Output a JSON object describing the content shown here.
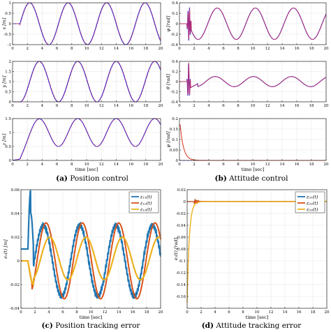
{
  "captions": {
    "a": {
      "label": "(a)",
      "text": "Position control"
    },
    "b": {
      "label": "(b)",
      "text": "Attitude control"
    },
    "c": {
      "label": "(c)",
      "text": "Position tracking error"
    },
    "d": {
      "label": "(d)",
      "text": "Attitude tracking error"
    }
  },
  "colors": {
    "reference": "#1f1fd8",
    "actual": "#c0306e",
    "blue": "#1f77b4",
    "orange": "#d95319",
    "yellow": "#edb120"
  },
  "chart_data": [
    {
      "type": "line",
      "panel": "x",
      "ylabel": "x",
      "yunit": "[m]",
      "xlim": [
        0,
        20
      ],
      "ylim": [
        -1,
        1
      ],
      "xticks": [
        0,
        2,
        4,
        6,
        8,
        10,
        12,
        14,
        16,
        18,
        20
      ],
      "yticks": [
        -1,
        -0.5,
        0,
        0.5,
        1
      ],
      "ytick_labels": [
        "-1",
        "-0.5",
        "0",
        "0.5",
        "1"
      ],
      "series": [
        {
          "style": "reference",
          "values": {
            "t": [
              0,
              1,
              20
            ],
            "f": "sin",
            "amp": 1,
            "period": 5,
            "start": 1
          }
        },
        {
          "style": "actual",
          "values": {
            "t": [
              0,
              1,
              20
            ],
            "f": "sin",
            "amp": 1,
            "period": 5,
            "start": 1
          }
        }
      ],
      "grid": true
    },
    {
      "type": "line",
      "panel": "y",
      "ylabel": "y",
      "yunit": "[m]",
      "xlim": [
        0,
        20
      ],
      "ylim": [
        0,
        2
      ],
      "xticks": [
        0,
        2,
        4,
        6,
        8,
        10,
        12,
        14,
        16,
        18,
        20
      ],
      "yticks": [
        0,
        0.5,
        1,
        1.5,
        2
      ],
      "ytick_labels": [
        "0",
        "0.5",
        "1",
        "1.5",
        "2"
      ],
      "grid": true
    },
    {
      "type": "line",
      "panel": "z",
      "ylabel": "z",
      "yunit": "[m]",
      "xlabel": "time [sec]",
      "xlim": [
        0,
        20
      ],
      "ylim": [
        0,
        1.5
      ],
      "xticks": [
        0,
        2,
        4,
        6,
        8,
        10,
        12,
        14,
        16,
        18,
        20
      ],
      "yticks": [
        0,
        0.5,
        1,
        1.5
      ],
      "ytick_labels": [
        "0",
        "0.5",
        "1",
        "1.5"
      ],
      "grid": true
    },
    {
      "type": "line",
      "panel": "phi",
      "ylabel": "φ",
      "yunit": "[rad]",
      "xlim": [
        0,
        20
      ],
      "ylim": [
        -0.4,
        0.4
      ],
      "xticks": [
        0,
        2,
        4,
        6,
        8,
        10,
        12,
        14,
        16,
        18,
        20
      ],
      "yticks": [
        -0.4,
        -0.2,
        0,
        0.2,
        0.4
      ],
      "ytick_labels": [
        "-0.4",
        "-0.2",
        "0",
        "0.2",
        "0.4"
      ],
      "grid": true
    },
    {
      "type": "line",
      "panel": "theta",
      "ylabel": "θ",
      "yunit": "[rad]",
      "xlim": [
        0,
        20
      ],
      "ylim": [
        -0.4,
        0.4
      ],
      "xticks": [
        0,
        2,
        4,
        6,
        8,
        10,
        12,
        14,
        16,
        18,
        20
      ],
      "yticks": [
        -0.4,
        -0.2,
        0,
        0.2,
        0.4
      ],
      "ytick_labels": [
        "-0.4",
        "-0.2",
        "0",
        "0.2",
        "0.4"
      ],
      "grid": true
    },
    {
      "type": "line",
      "panel": "psi",
      "ylabel": "ψ",
      "yunit": "[rad]",
      "xlabel": "time [sec]",
      "xlim": [
        0,
        20
      ],
      "ylim": [
        0,
        0.2
      ],
      "xticks": [
        0,
        2,
        4,
        6,
        8,
        10,
        12,
        14,
        16,
        18,
        20
      ],
      "yticks": [
        0,
        0.05,
        0.1,
        0.15,
        0.2
      ],
      "ytick_labels": [
        "0",
        "0.05",
        "0.1",
        "0.15",
        "0.2"
      ],
      "grid": true
    },
    {
      "type": "line",
      "panel": "pos_err",
      "ylabel": "e₁(t) [m]",
      "xlabel": "time [sec]",
      "xlim": [
        0,
        20
      ],
      "ylim": [
        -0.04,
        0.06
      ],
      "xticks": [
        0,
        2,
        4,
        6,
        8,
        10,
        12,
        14,
        16,
        18,
        20
      ],
      "yticks": [
        -0.04,
        -0.02,
        0,
        0.02,
        0.04,
        0.06
      ],
      "ytick_labels": [
        "-0.04",
        "-0.02",
        "0",
        "0.02",
        "0.04",
        "0.06"
      ],
      "grid": true,
      "legend_placement": "top-right",
      "legend": [
        "ε₁₁(t)",
        "ε₁₂(t)",
        "ε₁₃(t)"
      ]
    },
    {
      "type": "line",
      "panel": "att_err",
      "ylabel": "e₂(t) [rad]",
      "xlabel": "time [sec]",
      "xlim": [
        0,
        20
      ],
      "ylim": [
        -0.18,
        0.02
      ],
      "xticks": [
        0,
        2,
        4,
        6,
        8,
        10,
        12,
        14,
        16,
        18,
        20
      ],
      "yticks": [
        -0.16,
        -0.14,
        -0.12,
        -0.1,
        -0.08,
        -0.06,
        -0.04,
        -0.02,
        0,
        0.02
      ],
      "ytick_labels": [
        "-0.16",
        "-0.14",
        "-0.12",
        "-0.1",
        "-0.08",
        "-0.06",
        "-0.04",
        "-0.02",
        "0",
        "0.02"
      ],
      "grid": true,
      "legend_placement": "top-right",
      "legend": [
        "ε₂₁(t)",
        "ε₂₂(t)",
        "ε₂₃(t)"
      ]
    }
  ]
}
